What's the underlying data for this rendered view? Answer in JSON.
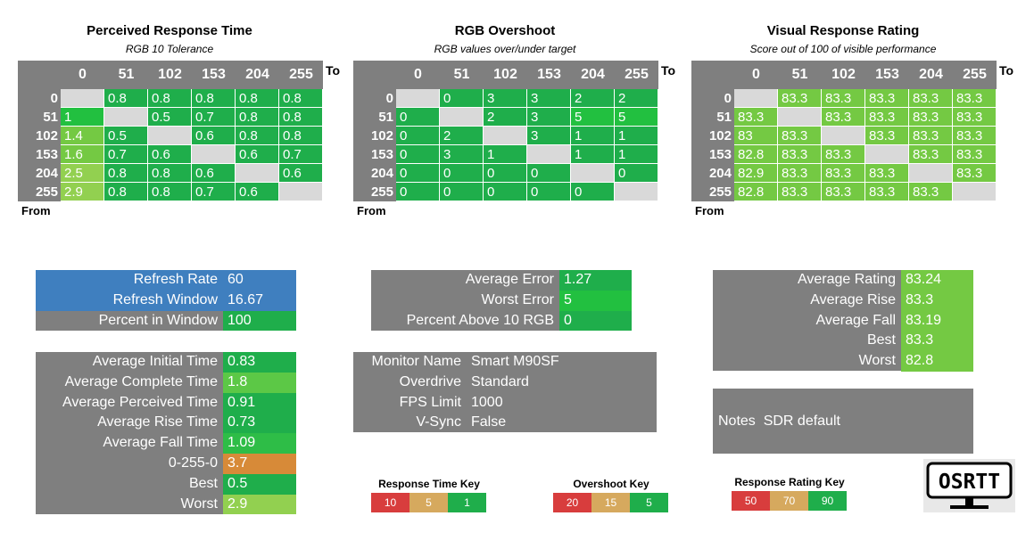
{
  "colors": {
    "green_dark": "#1fae4b",
    "green_mid": "#22c040",
    "green_light": "#74c943",
    "lime": "#92d050",
    "orange": "#d78a38",
    "red": "#d83d3d",
    "tan": "#d6a95e",
    "gray": "#7f7f7f",
    "light_gray": "#d9d9d9",
    "blue": "#3f7fbf"
  },
  "matrices": [
    {
      "title": "Perceived Response Time",
      "subtitle": "RGB 10 Tolerance",
      "to_label": "To",
      "from_label": "From",
      "columns": [
        "0",
        "51",
        "102",
        "153",
        "204",
        "255"
      ],
      "rows": [
        {
          "label": "0",
          "cells": [
            "",
            "0.8",
            "0.8",
            "0.8",
            "0.8",
            "0.8"
          ]
        },
        {
          "label": "51",
          "cells": [
            "1",
            "",
            "0.5",
            "0.7",
            "0.8",
            "0.8"
          ]
        },
        {
          "label": "102",
          "cells": [
            "1.4",
            "0.5",
            "",
            "0.6",
            "0.8",
            "0.8"
          ]
        },
        {
          "label": "153",
          "cells": [
            "1.6",
            "0.7",
            "0.6",
            "",
            "0.6",
            "0.7"
          ]
        },
        {
          "label": "204",
          "cells": [
            "2.5",
            "0.8",
            "0.8",
            "0.6",
            "",
            "0.6"
          ]
        },
        {
          "label": "255",
          "cells": [
            "2.9",
            "0.8",
            "0.8",
            "0.7",
            "0.6",
            ""
          ]
        }
      ]
    },
    {
      "title": "RGB Overshoot",
      "subtitle": "RGB values over/under target",
      "to_label": "To",
      "from_label": "From",
      "columns": [
        "0",
        "51",
        "102",
        "153",
        "204",
        "255"
      ],
      "rows": [
        {
          "label": "0",
          "cells": [
            "",
            "0",
            "3",
            "3",
            "2",
            "2"
          ]
        },
        {
          "label": "51",
          "cells": [
            "0",
            "",
            "2",
            "3",
            "5",
            "5"
          ]
        },
        {
          "label": "102",
          "cells": [
            "0",
            "2",
            "",
            "3",
            "1",
            "1"
          ]
        },
        {
          "label": "153",
          "cells": [
            "0",
            "3",
            "1",
            "",
            "1",
            "1"
          ]
        },
        {
          "label": "204",
          "cells": [
            "0",
            "0",
            "0",
            "0",
            "",
            "0"
          ]
        },
        {
          "label": "255",
          "cells": [
            "0",
            "0",
            "0",
            "0",
            "0",
            ""
          ]
        }
      ]
    },
    {
      "title": "Visual Response Rating",
      "subtitle": "Score out of 100 of visible performance",
      "to_label": "To",
      "from_label": "From",
      "columns": [
        "0",
        "51",
        "102",
        "153",
        "204",
        "255"
      ],
      "rows": [
        {
          "label": "0",
          "cells": [
            "",
            "83.3",
            "83.3",
            "83.3",
            "83.3",
            "83.3"
          ]
        },
        {
          "label": "51",
          "cells": [
            "83.3",
            "",
            "83.3",
            "83.3",
            "83.3",
            "83.3"
          ]
        },
        {
          "label": "102",
          "cells": [
            "83",
            "83.3",
            "",
            "83.3",
            "83.3",
            "83.3"
          ]
        },
        {
          "label": "153",
          "cells": [
            "82.8",
            "83.3",
            "83.3",
            "",
            "83.3",
            "83.3"
          ]
        },
        {
          "label": "204",
          "cells": [
            "82.9",
            "83.3",
            "83.3",
            "83.3",
            "",
            "83.3"
          ]
        },
        {
          "label": "255",
          "cells": [
            "82.8",
            "83.3",
            "83.3",
            "83.3",
            "83.3",
            ""
          ]
        }
      ]
    }
  ],
  "refresh": {
    "refresh_rate_label": "Refresh Rate",
    "refresh_rate": "60",
    "refresh_window_label": "Refresh Window",
    "refresh_window": "16.67",
    "percent_in_window_label": "Percent in Window",
    "percent_in_window": "100"
  },
  "times": {
    "avg_initial_label": "Average Initial Time",
    "avg_initial": "0.83",
    "avg_complete_label": "Average Complete Time",
    "avg_complete": "1.8",
    "avg_perceived_label": "Average Perceived Time",
    "avg_perceived": "0.91",
    "avg_rise_label": "Average Rise Time",
    "avg_rise": "0.73",
    "avg_fall_label": "Average Fall Time",
    "avg_fall": "1.09",
    "cycle_label": "0-255-0",
    "cycle": "3.7",
    "best_label": "Best",
    "best": "0.5",
    "worst_label": "Worst",
    "worst": "2.9"
  },
  "errors": {
    "avg_error_label": "Average Error",
    "avg_error": "1.27",
    "worst_error_label": "Worst Error",
    "worst_error": "5",
    "percent_above_label": "Percent Above 10 RGB",
    "percent_above": "0"
  },
  "monitor": {
    "name_label": "Monitor Name",
    "name": "Smart M90SF",
    "overdrive_label": "Overdrive",
    "overdrive": "Standard",
    "fps_label": "FPS Limit",
    "fps": "1000",
    "vsync_label": "V-Sync",
    "vsync": "False"
  },
  "ratings": {
    "avg_rating_label": "Average Rating",
    "avg_rating": "83.24",
    "avg_rise_label": "Average Rise",
    "avg_rise": "83.3",
    "avg_fall_label": "Average Fall",
    "avg_fall": "83.19",
    "best_label": "Best",
    "best": "83.3",
    "worst_label": "Worst",
    "worst": "82.8"
  },
  "notes": {
    "label": "Notes",
    "value": "SDR default"
  },
  "keys": {
    "response_time": {
      "title": "Response Time Key",
      "values": [
        "10",
        "5",
        "1"
      ]
    },
    "overshoot": {
      "title": "Overshoot Key",
      "values": [
        "20",
        "15",
        "5"
      ]
    },
    "rating": {
      "title": "Response Rating Key",
      "values": [
        "50",
        "70",
        "90"
      ]
    }
  },
  "logo": {
    "text": "OSRTT",
    "icon": "monitor-logo-icon"
  }
}
